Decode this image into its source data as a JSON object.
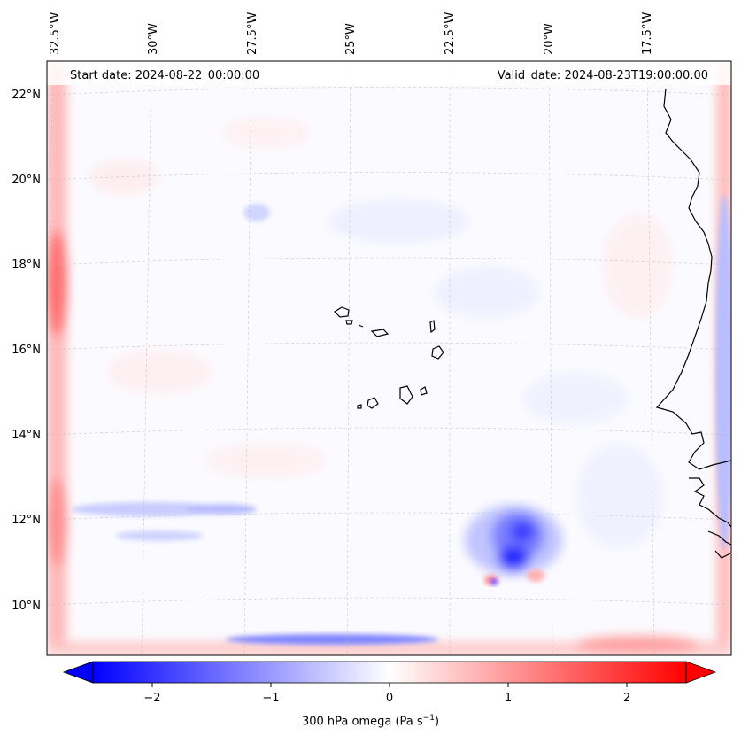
{
  "header": {
    "start_date": "Start date: 2024-08-22_00:00:00",
    "valid_date": "Valid_date: 2024-08-23T19:00:00.00"
  },
  "lon_labels": [
    "32.5°W",
    "30°W",
    "27.5°W",
    "25°W",
    "22.5°W",
    "20°W",
    "17.5°W"
  ],
  "lat_labels": [
    "22°N",
    "20°N",
    "18°N",
    "16°N",
    "14°N",
    "12°N",
    "10°N"
  ],
  "colorbar": {
    "ticks": [
      "−2",
      "−1",
      "0",
      "1",
      "2"
    ],
    "range": [
      -2.5,
      2.5
    ],
    "extend": "both",
    "label": "300 hPa omega (Pa s",
    "label_sup": "−1",
    "label_end": ")",
    "colors": {
      "negative": "#0000ff",
      "zero": "#ffffff",
      "positive": "#ff0000"
    }
  },
  "map": {
    "projection": "lambert",
    "gridlines": true,
    "lon_range": [
      -33,
      -15
    ],
    "lat_range": [
      9,
      22.5
    ],
    "field_colors": {
      "coast": "#000000",
      "grid": "#b0b0b0"
    }
  }
}
